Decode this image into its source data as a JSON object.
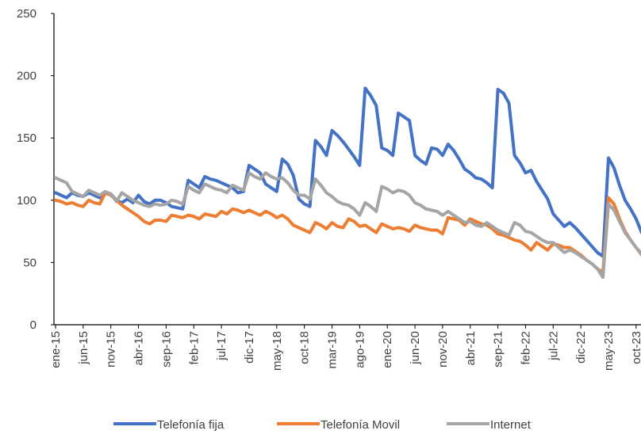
{
  "chart_data": {
    "type": "line",
    "categories": [
      "ene-15",
      null,
      null,
      null,
      null,
      "jun-15",
      null,
      null,
      null,
      null,
      "nov-15",
      null,
      null,
      null,
      null,
      "abr-16",
      null,
      null,
      null,
      null,
      "sep-16",
      null,
      null,
      null,
      null,
      "feb-17",
      null,
      null,
      null,
      null,
      "jul-17",
      null,
      null,
      null,
      null,
      "dic-17",
      null,
      null,
      null,
      null,
      "may-18",
      null,
      null,
      null,
      null,
      "oct-18",
      null,
      null,
      null,
      null,
      "mar-19",
      null,
      null,
      null,
      null,
      "ago-19",
      null,
      null,
      null,
      null,
      "ene-20",
      null,
      null,
      null,
      null,
      "jun-20",
      null,
      null,
      null,
      null,
      "nov-20",
      null,
      null,
      null,
      null,
      "abr-21",
      null,
      null,
      null,
      null,
      "sep-21",
      null,
      null,
      null,
      null,
      "feb-22",
      null,
      null,
      null,
      null,
      "jul-22",
      null,
      null,
      null,
      null,
      "dic-22",
      null,
      null,
      null,
      null,
      "may-23",
      null,
      null,
      null,
      null,
      "oct-23",
      null
    ],
    "series": [
      {
        "name": "Telefonía fija",
        "color": "#4472c4",
        "values": [
          106,
          104,
          102,
          106,
          104,
          103,
          106,
          104,
          102,
          106,
          105,
          100,
          98,
          101,
          98,
          104,
          99,
          97,
          100,
          100,
          98,
          95,
          94,
          93,
          116,
          113,
          110,
          119,
          117,
          116,
          114,
          112,
          110,
          106,
          107,
          128,
          125,
          122,
          113,
          110,
          107,
          133,
          129,
          120,
          101,
          97,
          95,
          148,
          143,
          136,
          156,
          152,
          147,
          141,
          135,
          128,
          190,
          184,
          176,
          142,
          140,
          136,
          170,
          167,
          164,
          136,
          132,
          129,
          142,
          141,
          136,
          145,
          140,
          133,
          125,
          122,
          118,
          117,
          114,
          110,
          189,
          186,
          178,
          136,
          130,
          122,
          124,
          115,
          108,
          101,
          89,
          84,
          79,
          82,
          78,
          73,
          68,
          63,
          58,
          55,
          134,
          126,
          112,
          100,
          93,
          85,
          74
        ]
      },
      {
        "name": "Telefonía Movil",
        "color": "#ed7d31",
        "values": [
          100,
          99,
          97,
          98,
          96,
          95,
          100,
          98,
          97,
          106,
          104,
          100,
          96,
          93,
          90,
          87,
          83,
          81,
          84,
          84,
          83,
          88,
          87,
          86,
          88,
          87,
          85,
          89,
          88,
          87,
          91,
          89,
          93,
          92,
          90,
          92,
          90,
          88,
          91,
          89,
          86,
          88,
          85,
          80,
          78,
          76,
          74,
          82,
          80,
          77,
          82,
          79,
          78,
          85,
          83,
          79,
          80,
          77,
          74,
          81,
          79,
          77,
          78,
          77,
          75,
          80,
          78,
          77,
          76,
          76,
          73,
          86,
          85,
          84,
          80,
          85,
          83,
          81,
          80,
          77,
          73,
          72,
          70,
          68,
          67,
          64,
          60,
          66,
          63,
          60,
          65,
          64,
          62,
          62,
          59,
          56,
          52,
          49,
          45,
          42,
          102,
          97,
          85,
          75,
          68,
          62,
          57
        ]
      },
      {
        "name": "Internet",
        "color": "#a5a5a5",
        "values": [
          118,
          116,
          114,
          107,
          105,
          103,
          108,
          106,
          104,
          107,
          105,
          99,
          106,
          103,
          100,
          98,
          96,
          95,
          97,
          96,
          97,
          100,
          99,
          97,
          111,
          108,
          106,
          113,
          111,
          109,
          108,
          106,
          112,
          110,
          108,
          122,
          119,
          117,
          122,
          119,
          117,
          118,
          114,
          108,
          104,
          104,
          101,
          117,
          112,
          106,
          103,
          99,
          97,
          96,
          93,
          88,
          98,
          95,
          91,
          111,
          109,
          106,
          108,
          107,
          104,
          98,
          96,
          93,
          92,
          91,
          88,
          91,
          88,
          85,
          82,
          83,
          80,
          79,
          82,
          79,
          76,
          74,
          72,
          82,
          80,
          75,
          74,
          71,
          68,
          66,
          66,
          62,
          58,
          60,
          58,
          55,
          52,
          49,
          45,
          38,
          97,
          92,
          83,
          74,
          68,
          62,
          56
        ]
      }
    ],
    "ylim": [
      0,
      250
    ],
    "yticks": [
      0,
      50,
      100,
      150,
      200,
      250
    ],
    "grid": false,
    "legend": "bottom"
  }
}
